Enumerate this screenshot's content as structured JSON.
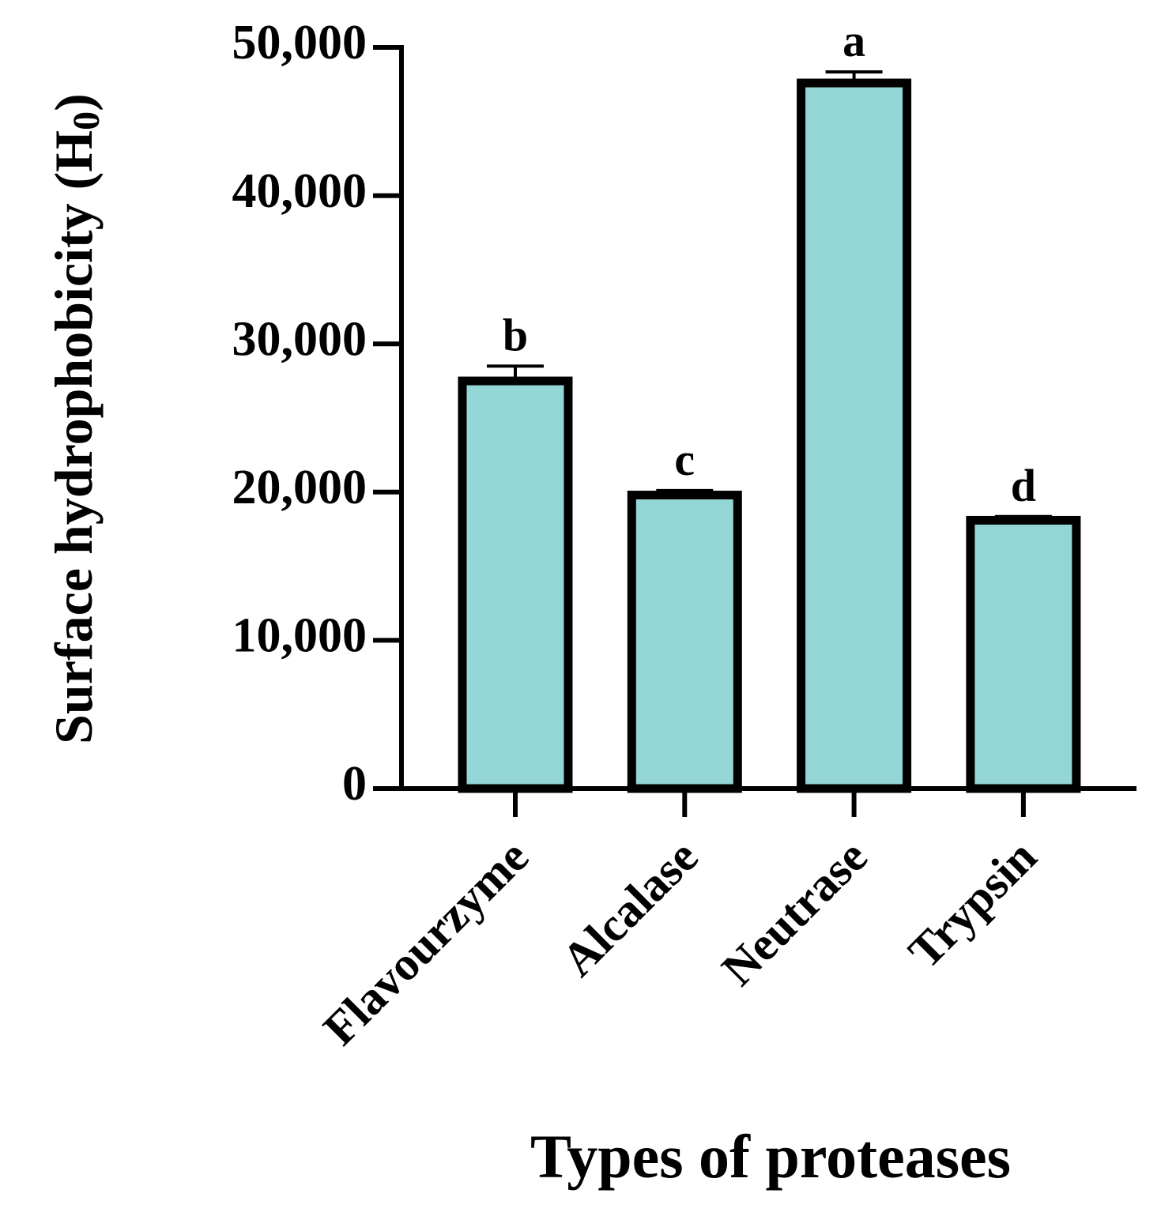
{
  "chart_data": {
    "type": "bar",
    "categories": [
      "Flavourzyme",
      "Alcalase",
      "Neutrase",
      "Trypsin"
    ],
    "values": [
      27500,
      19800,
      47600,
      18100
    ],
    "errors": [
      1000,
      300,
      750,
      250
    ],
    "significance_letters": [
      "b",
      "c",
      "a",
      "d"
    ],
    "xlabel": "Types of proteases",
    "ylabel": "Surface hydrophobicity (H",
    "ylabel_subscript": "0",
    "ylabel_close": ")",
    "ylim": [
      0,
      50000
    ],
    "yticks": [
      0,
      10000,
      20000,
      30000,
      40000,
      50000
    ],
    "ytick_labels": [
      "0",
      "10,000",
      "20,000",
      "30,000",
      "40,000",
      "50,000"
    ],
    "bar_color": "#94d6d6",
    "edge_color": "#000000",
    "grid": false,
    "legend": "none"
  }
}
